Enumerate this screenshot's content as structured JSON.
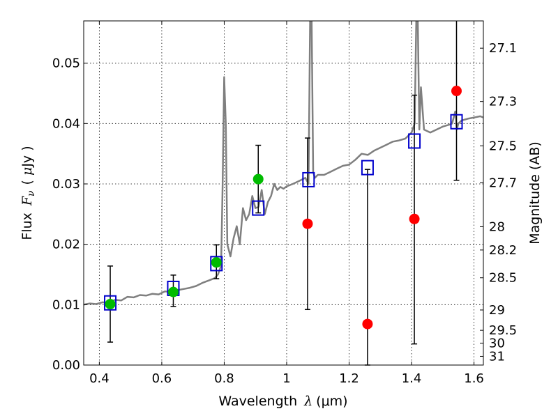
{
  "chart_data": {
    "type": "scatter",
    "x_axis": {
      "label_prefix": "Wavelength",
      "label_var": "λ",
      "label_unit": "(μm)",
      "lim": [
        0.35,
        1.63
      ],
      "ticks": [
        0.4,
        0.6,
        0.8,
        1.0,
        1.2,
        1.4,
        1.6
      ],
      "tick_labels": [
        "0.4",
        "0.6",
        "0.8",
        "1",
        "1.2",
        "1.4",
        "1.6"
      ]
    },
    "y_axis": {
      "label_prefix": "Flux",
      "label_var": "F",
      "label_sub": "ν",
      "label_unit_open": "(",
      "label_unit_mu": "μ",
      "label_unit_rest": "Jy )",
      "lim": [
        0.0,
        0.057
      ],
      "ticks": [
        0.0,
        0.01,
        0.02,
        0.03,
        0.04,
        0.05
      ],
      "tick_labels": [
        "0.00",
        "0.01",
        "0.02",
        "0.03",
        "0.04",
        "0.05"
      ]
    },
    "y2_axis": {
      "label": "Magnitude (AB)",
      "ticks": [
        27.1,
        27.3,
        27.5,
        27.7,
        28.0,
        28.2,
        28.5,
        29.0,
        29.5,
        30.0,
        31.0
      ],
      "tick_labels": [
        "27.1",
        "27.3",
        "27.5",
        "27.7",
        "28",
        "28.2",
        "28.5",
        "29",
        "29.5",
        "30",
        "31"
      ],
      "zeropoint_uJy_mag": 23.9
    },
    "grid": true,
    "colors": {
      "model": "#7f7f7f",
      "green": "#00bb00",
      "red": "#ff0000",
      "square": "#0000cc",
      "errorbar": "#000000"
    },
    "model_spectrum": {
      "x": [
        0.35,
        0.37,
        0.39,
        0.41,
        0.43,
        0.45,
        0.47,
        0.49,
        0.51,
        0.53,
        0.55,
        0.57,
        0.59,
        0.61,
        0.63,
        0.65,
        0.67,
        0.69,
        0.71,
        0.73,
        0.75,
        0.77,
        0.78,
        0.79,
        0.795,
        0.8,
        0.805,
        0.81,
        0.82,
        0.83,
        0.84,
        0.85,
        0.86,
        0.87,
        0.88,
        0.89,
        0.9,
        0.91,
        0.92,
        0.93,
        0.94,
        0.95,
        0.96,
        0.97,
        0.98,
        0.99,
        1.0,
        1.02,
        1.04,
        1.06,
        1.07,
        1.075,
        1.08,
        1.085,
        1.09,
        1.1,
        1.12,
        1.14,
        1.16,
        1.18,
        1.2,
        1.22,
        1.24,
        1.26,
        1.28,
        1.3,
        1.32,
        1.34,
        1.36,
        1.38,
        1.4,
        1.41,
        1.415,
        1.42,
        1.425,
        1.43,
        1.44,
        1.46,
        1.48,
        1.5,
        1.52,
        1.53,
        1.54,
        1.545,
        1.55,
        1.56,
        1.58,
        1.6,
        1.62,
        1.63
      ],
      "y": [
        0.01,
        0.0102,
        0.0101,
        0.0104,
        0.0103,
        0.0108,
        0.0107,
        0.0113,
        0.0112,
        0.0116,
        0.0115,
        0.0118,
        0.0117,
        0.0122,
        0.0121,
        0.0124,
        0.0126,
        0.0128,
        0.0131,
        0.0136,
        0.014,
        0.0144,
        0.015,
        0.0165,
        0.03,
        0.0477,
        0.04,
        0.02,
        0.018,
        0.021,
        0.023,
        0.02,
        0.026,
        0.024,
        0.025,
        0.028,
        0.026,
        0.0262,
        0.029,
        0.025,
        0.027,
        0.028,
        0.03,
        0.029,
        0.0295,
        0.0292,
        0.0296,
        0.03,
        0.0305,
        0.031,
        0.03,
        0.057,
        0.057,
        0.032,
        0.031,
        0.0315,
        0.0315,
        0.032,
        0.0325,
        0.033,
        0.0332,
        0.034,
        0.035,
        0.0348,
        0.0355,
        0.036,
        0.0365,
        0.037,
        0.0372,
        0.0375,
        0.0385,
        0.04,
        0.057,
        0.057,
        0.039,
        0.046,
        0.039,
        0.0385,
        0.039,
        0.0395,
        0.0398,
        0.04,
        0.042,
        0.039,
        0.04,
        0.0405,
        0.0408,
        0.041,
        0.0412,
        0.041
      ]
    },
    "series": [
      {
        "marker": "green-circle",
        "x": [
          0.435,
          0.637,
          0.775,
          0.909
        ],
        "y": [
          0.0101,
          0.0121,
          0.017,
          0.0308
        ],
        "yerr_low": [
          0.0038,
          0.0097,
          0.0143,
          0.0252
        ],
        "yerr_high": [
          0.0164,
          0.0149,
          0.0199,
          0.0364
        ]
      },
      {
        "marker": "red-circle",
        "x": [
          1.067,
          1.259,
          1.409,
          1.544
        ],
        "y": [
          0.0234,
          0.0068,
          0.0242,
          0.0454
        ],
        "yerr_low": [
          0.0092,
          0.0,
          0.0035,
          0.0306
        ],
        "yerr_high": [
          0.0376,
          0.0324,
          0.0447,
          0.057
        ]
      },
      {
        "marker": "blue-open-square",
        "x": [
          0.435,
          0.637,
          0.775,
          0.909,
          1.07,
          1.259,
          1.409,
          1.544
        ],
        "y": [
          0.0103,
          0.0127,
          0.0168,
          0.026,
          0.0307,
          0.0327,
          0.0371,
          0.0403
        ]
      }
    ]
  }
}
